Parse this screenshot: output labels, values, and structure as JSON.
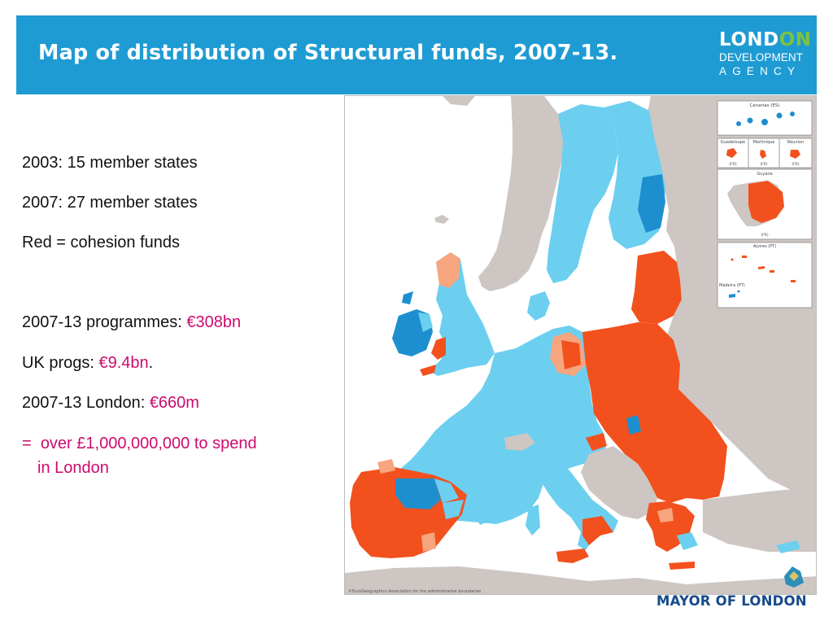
{
  "slide": {
    "title": "Map of distribution of Structural funds, 2007-13.",
    "colors": {
      "header": "#1e9bd3",
      "highlight": "#cc0b6e",
      "cohesion_red": "#f2511e",
      "competitiveness_blue": "#6ccff0",
      "convergence_blue": "#1d8fcf",
      "phasing_salmon": "#f7a57f",
      "non_eu_grey": "#cdc6c2",
      "sea": "#ffffff"
    }
  },
  "logo": {
    "line1_a": "LOND",
    "line1_b": "ON",
    "line2": "DEVELOPMENT",
    "line3": "AGENCY"
  },
  "facts": [
    {
      "text": "2003: 15 member states"
    },
    {
      "text": "2007: 27 member states"
    },
    {
      "text": "Red = cohesion funds"
    },
    {
      "label": "2007-13 programmes: ",
      "value": "€308bn",
      "suffix": ""
    },
    {
      "label": "UK progs: ",
      "value": "€9.4bn",
      "suffix": "."
    },
    {
      "label": "2007-13 London: ",
      "value": "€660m",
      "suffix": ""
    }
  ],
  "summary": {
    "prefix": "=",
    "line1": "over £1,000,000,000 to spend",
    "line2": "in London"
  },
  "map": {
    "insets": {
      "canarias": "Canarias (ES)",
      "guadeloupe": "Guadeloupe",
      "martinique": "Martinique",
      "reunion": "Réunion",
      "fr_tag": "(FR)",
      "guyane": "Guyane",
      "acores": "Açores (PT)",
      "madeira": "Madeira (PT)"
    },
    "copyright": "©EuroGeographics Association for the administrative boundaries"
  },
  "footer": {
    "mayor": "MAYOR OF LONDON"
  }
}
